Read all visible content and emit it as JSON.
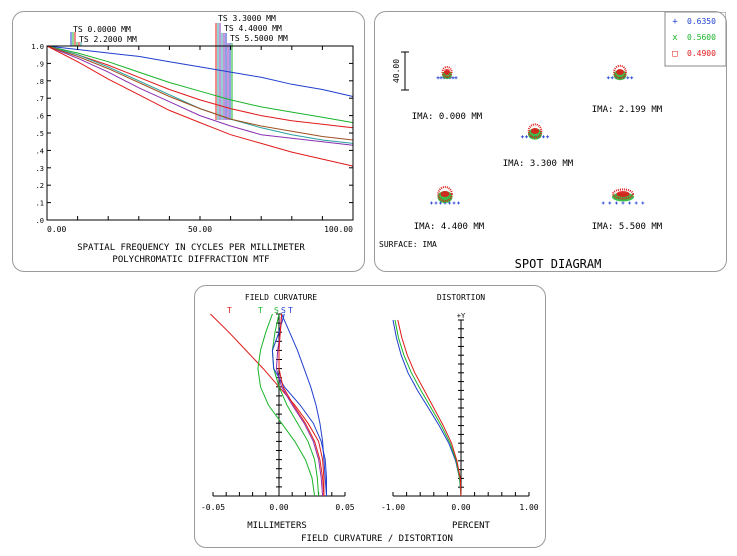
{
  "colors": {
    "series1": "#1f3fd0",
    "series2": "#19b42a",
    "series3": "#e01a1a",
    "series4": "#2aa0a0",
    "series5": "#8a2fb0",
    "series6": "#a05020",
    "axis": "#000000"
  },
  "chart_data": [
    {
      "type": "line",
      "title": "POLYCHROMATIC DIFFRACTION MTF",
      "xlabel": "SPATIAL FREQUENCY IN CYCLES PER MILLIMETER",
      "ylabel": "",
      "xlim": [
        0,
        100
      ],
      "ylim": [
        0,
        1
      ],
      "x_tick_labels": [
        "0.00",
        "50.00",
        "100.00"
      ],
      "y_tick_labels": [
        ".0",
        ".1",
        ".2",
        ".3",
        ".4",
        ".5",
        ".6",
        ".7",
        ".8",
        ".9",
        "1.0"
      ],
      "field_labels": [
        "TS 0.0000 MM",
        "TS 2.2000 MM",
        "TS 3.3000 MM",
        "TS 4.4000 MM",
        "TS 5.5000 MM"
      ],
      "x": [
        0,
        10,
        20,
        30,
        40,
        50,
        60,
        70,
        80,
        90,
        100
      ],
      "series": [
        {
          "color": "#1f3fd0",
          "values": [
            1.0,
            0.98,
            0.96,
            0.94,
            0.91,
            0.88,
            0.85,
            0.82,
            0.78,
            0.75,
            0.71
          ]
        },
        {
          "color": "#19b42a",
          "values": [
            1.0,
            0.96,
            0.91,
            0.85,
            0.79,
            0.74,
            0.69,
            0.65,
            0.62,
            0.59,
            0.56
          ]
        },
        {
          "color": "#e01a1a",
          "values": [
            1.0,
            0.95,
            0.89,
            0.82,
            0.75,
            0.69,
            0.64,
            0.6,
            0.57,
            0.55,
            0.53
          ]
        },
        {
          "color": "#2aa0a0",
          "values": [
            1.0,
            0.95,
            0.88,
            0.8,
            0.72,
            0.64,
            0.58,
            0.53,
            0.49,
            0.46,
            0.44
          ]
        },
        {
          "color": "#8a2fb0",
          "values": [
            1.0,
            0.93,
            0.85,
            0.76,
            0.68,
            0.6,
            0.54,
            0.49,
            0.47,
            0.45,
            0.43
          ]
        },
        {
          "color": "#a05020",
          "values": [
            1.0,
            0.94,
            0.87,
            0.79,
            0.71,
            0.64,
            0.58,
            0.54,
            0.51,
            0.48,
            0.46
          ]
        },
        {
          "color": "#e01a1a",
          "values": [
            1.0,
            0.91,
            0.81,
            0.72,
            0.63,
            0.56,
            0.49,
            0.44,
            0.39,
            0.35,
            0.31
          ]
        }
      ],
      "grid": false
    },
    {
      "type": "scatter",
      "title": "SPOT DIAGRAM",
      "surface_label": "SURFACE: IMA",
      "scale_label": "40.00",
      "wavelengths": [
        {
          "symbol": "+",
          "value": "0.6350",
          "color": "#1f3fd0"
        },
        {
          "symbol": "x",
          "value": "0.5600",
          "color": "#19b42a"
        },
        {
          "symbol": "□",
          "value": "0.4900",
          "color": "#e01a1a"
        }
      ],
      "fields": [
        {
          "label": "IMA: 0.000 MM"
        },
        {
          "label": "IMA: 2.199 MM"
        },
        {
          "label": "IMA: 3.300 MM"
        },
        {
          "label": "IMA: 4.400 MM"
        },
        {
          "label": "IMA: 5.500 MM"
        }
      ]
    },
    {
      "type": "line",
      "title": "FIELD CURVATURE / DISTORTION",
      "field_curvature": {
        "title": "FIELD CURVATURE",
        "xlabel": "MILLIMETERS",
        "xlim": [
          -0.05,
          0.05
        ],
        "x_tick_labels": [
          "-0.05",
          "0.00",
          "0.05"
        ],
        "curve_labels": [
          "T",
          "T",
          "S",
          "S",
          "T"
        ],
        "y": [
          0,
          0.1,
          0.2,
          0.3,
          0.4,
          0.5,
          0.6,
          0.7,
          0.8,
          0.9,
          1.0
        ],
        "series": [
          {
            "name": "T",
            "color": "#e01a1a",
            "x": [
              0.034,
              0.034,
              0.033,
              0.03,
              0.022,
              0.012,
              0.0,
              -0.012,
              -0.025,
              -0.038,
              -0.052
            ]
          },
          {
            "name": "T",
            "color": "#19b42a",
            "x": [
              0.027,
              0.025,
              0.02,
              0.012,
              0.002,
              -0.008,
              -0.014,
              -0.016,
              -0.014,
              -0.01,
              -0.005
            ]
          },
          {
            "name": "S",
            "color": "#19b42a",
            "x": [
              0.03,
              0.029,
              0.027,
              0.022,
              0.014,
              0.006,
              0.0,
              -0.004,
              -0.005,
              -0.003,
              0.0
            ]
          },
          {
            "name": "S",
            "color": "#1f3fd0",
            "x": [
              0.036,
              0.035,
              0.034,
              0.033,
              0.031,
              0.028,
              0.024,
              0.019,
              0.014,
              0.008,
              0.002
            ]
          },
          {
            "name": "T",
            "color": "#1f3fd0",
            "x": [
              0.036,
              0.036,
              0.035,
              0.032,
              0.026,
              0.016,
              0.004,
              -0.004,
              -0.005,
              0.0,
              0.004
            ]
          },
          {
            "name": "S",
            "color": "#8a2fb0",
            "x": [
              0.033,
              0.032,
              0.03,
              0.026,
              0.019,
              0.01,
              0.002,
              -0.002,
              -0.001,
              0.001,
              0.002
            ]
          },
          {
            "name": "S",
            "color": "#e01a1a",
            "x": [
              0.034,
              0.033,
              0.031,
              0.027,
              0.02,
              0.011,
              0.003,
              0.0,
              0.0,
              0.001,
              0.002
            ]
          }
        ]
      },
      "distortion": {
        "title": "DISTORTION",
        "xlabel": "PERCENT",
        "axis_label": "+Y",
        "xlim": [
          -1.0,
          1.0
        ],
        "x_tick_labels": [
          "-1.00",
          "0.00",
          "1.00"
        ],
        "y": [
          0,
          0.1,
          0.2,
          0.3,
          0.4,
          0.5,
          0.6,
          0.7,
          0.8,
          0.9,
          1.0
        ],
        "series": [
          {
            "color": "#1f3fd0",
            "x": [
              0.0,
              -0.02,
              -0.08,
              -0.18,
              -0.32,
              -0.48,
              -0.64,
              -0.78,
              -0.88,
              -0.95,
              -1.0
            ]
          },
          {
            "color": "#19b42a",
            "x": [
              0.0,
              -0.02,
              -0.07,
              -0.16,
              -0.29,
              -0.44,
              -0.59,
              -0.73,
              -0.84,
              -0.92,
              -0.97
            ]
          },
          {
            "color": "#e01a1a",
            "x": [
              0.0,
              -0.01,
              -0.06,
              -0.14,
              -0.26,
              -0.4,
              -0.54,
              -0.68,
              -0.79,
              -0.87,
              -0.93
            ]
          }
        ]
      }
    }
  ]
}
